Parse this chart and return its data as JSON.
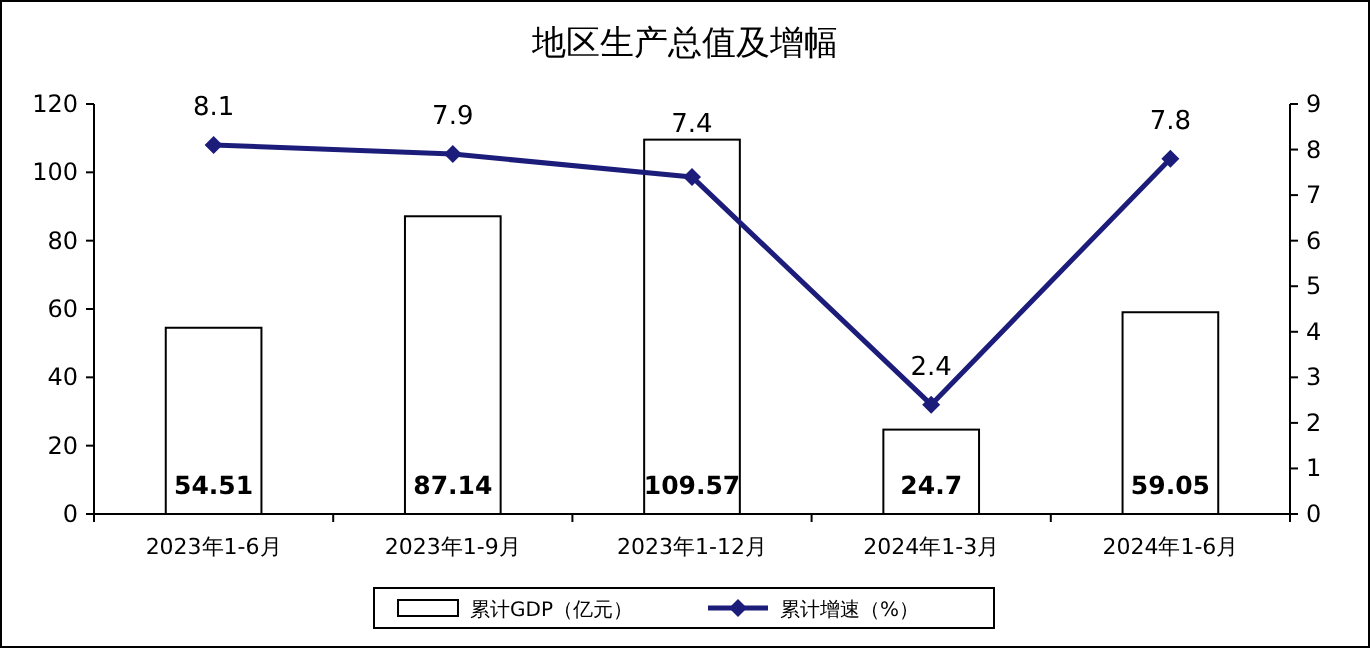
{
  "chart_data": {
    "type": "bar",
    "title": "地区生产总值及增幅",
    "categories": [
      "2023年1-6月",
      "2023年1-9月",
      "2023年1-12月",
      "2024年1-3月",
      "2024年1-6月"
    ],
    "series": [
      {
        "name": "累计GDP（亿元）",
        "color": "#ffffff",
        "values": [
          54.51,
          87.14,
          109.57,
          24.7,
          59.05
        ]
      },
      {
        "name": "累计增速（%）",
        "type": "line",
        "axis": "y2",
        "color": "#1c1c7a",
        "marker": "diamond",
        "values": [
          8.1,
          7.9,
          7.4,
          2.4,
          7.8
        ]
      }
    ],
    "ylim": [
      0,
      120
    ],
    "yticks": [
      0,
      20,
      40,
      60,
      80,
      100,
      120
    ],
    "y2lim": [
      0,
      9
    ],
    "y2ticks": [
      0,
      1,
      2,
      3,
      4,
      5,
      6,
      7,
      8,
      9
    ],
    "data_labels": true,
    "grid": false,
    "legend": "bottom"
  }
}
